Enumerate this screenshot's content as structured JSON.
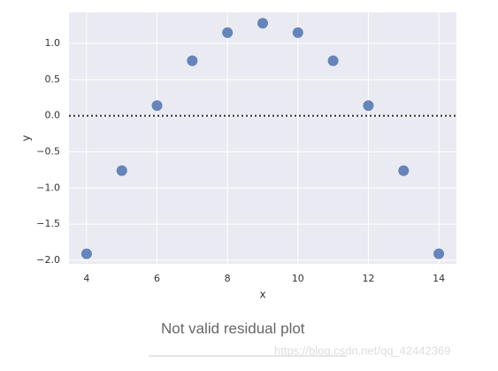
{
  "chart_data": {
    "type": "scatter",
    "xlabel": "x",
    "ylabel": "y",
    "series": [
      {
        "color": "#4c72b0",
        "x": [
          4,
          5,
          6,
          7,
          8,
          9,
          10,
          11,
          12,
          13,
          14
        ],
        "values": [
          -1.91,
          -0.76,
          0.14,
          0.76,
          1.15,
          1.28,
          1.15,
          0.76,
          0.14,
          -0.76,
          -1.91
        ]
      }
    ],
    "xlim": [
      3.5,
      14.5
    ],
    "xticks": [
      4,
      6,
      8,
      10,
      12,
      14
    ],
    "ylim": [
      -2.05,
      1.43
    ],
    "yticks": [
      {
        "value": -2.0,
        "label": "−2.0"
      },
      {
        "value": -1.5,
        "label": "−1.5"
      },
      {
        "value": -1.0,
        "label": "−1.0"
      },
      {
        "value": -0.5,
        "label": "−0.5"
      },
      {
        "value": 0.0,
        "label": "0.0"
      },
      {
        "value": 0.5,
        "label": "0.5"
      },
      {
        "value": 1.0,
        "label": "1.0"
      }
    ],
    "reference_line": 0,
    "grid": true
  },
  "caption": "Not valid residual plot",
  "watermark": "https://blog.csdn.net/qq_42442369"
}
